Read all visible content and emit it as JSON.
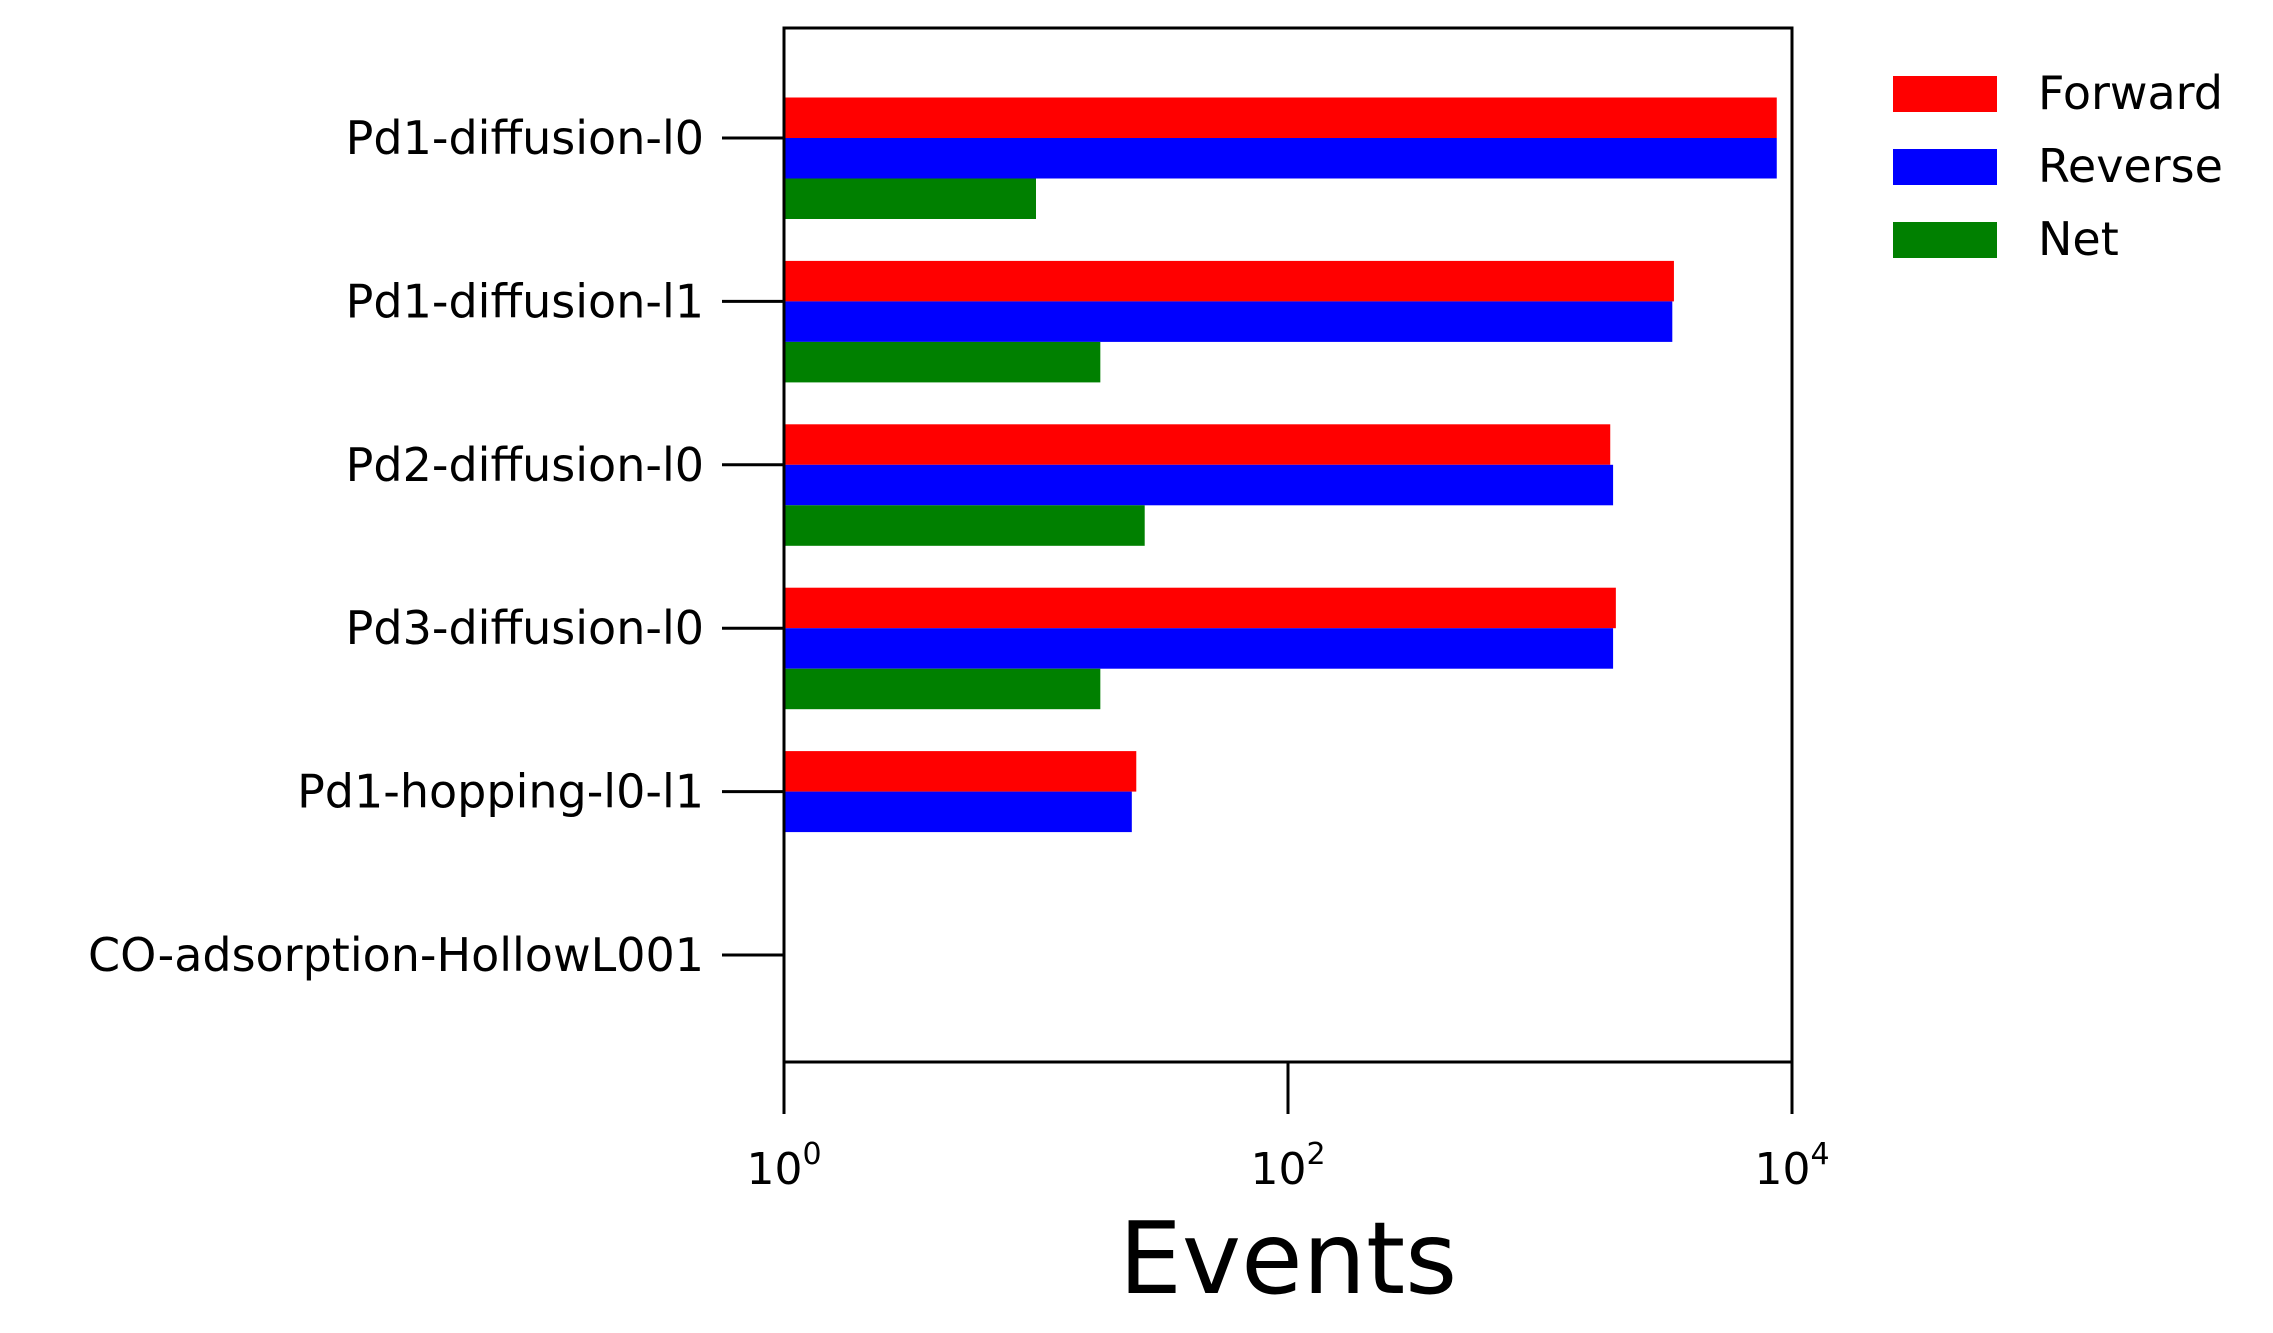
{
  "chart_data": {
    "type": "bar",
    "orientation": "horizontal",
    "categories": [
      "Pd1-diffusion-l0",
      "Pd1-diffusion-l1",
      "Pd2-diffusion-l0",
      "Pd3-diffusion-l0",
      "Pd1-hopping-l0-l1",
      "CO-adsorption-HollowL001"
    ],
    "series": [
      {
        "name": "Forward",
        "color": "#ff0000",
        "values": [
          8700,
          3400,
          1900,
          2000,
          25,
          0
        ]
      },
      {
        "name": "Reverse",
        "color": "#0000ff",
        "values": [
          8700,
          3350,
          1950,
          1950,
          24,
          0
        ]
      },
      {
        "name": "Net",
        "color": "#008000",
        "values": [
          10,
          18,
          27,
          18,
          0,
          0
        ]
      }
    ],
    "xlabel": "Events",
    "ylabel": "",
    "xscale": "log",
    "xlim": [
      1,
      10000
    ],
    "xticks": [
      {
        "base": "10",
        "exp": "0",
        "value": 1
      },
      {
        "base": "10",
        "exp": "2",
        "value": 100
      },
      {
        "base": "10",
        "exp": "4",
        "value": 10000
      }
    ],
    "legend_position": "outside-top-right",
    "grid": false
  }
}
